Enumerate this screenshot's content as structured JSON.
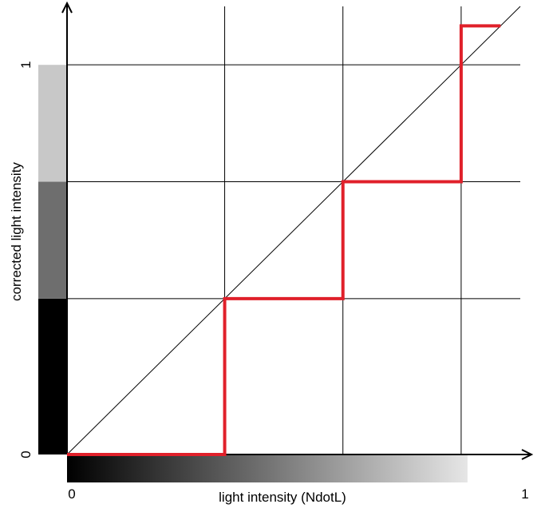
{
  "chart_data": {
    "type": "line",
    "title": "",
    "xlabel": "light intensity (NdotL)",
    "ylabel": "corrected light intensity",
    "xlim": [
      0,
      1.15
    ],
    "ylim": [
      0,
      1.15
    ],
    "x_ticks": [
      {
        "value": 0,
        "label": "0"
      },
      {
        "value": 1.15,
        "label": "1"
      }
    ],
    "y_ticks": [
      {
        "value": 0,
        "label": "0"
      },
      {
        "value": 1,
        "label": "1"
      }
    ],
    "gridlines_x": [
      0.4,
      0.7,
      1.0
    ],
    "gridlines_y": [
      0.4,
      0.7,
      1.0
    ],
    "grid": true,
    "legend": "none",
    "series": [
      {
        "color": "#000000",
        "style": "thin",
        "points": [
          [
            0,
            0
          ],
          [
            1.15,
            1.15
          ]
        ]
      },
      {
        "color": "#e0202a",
        "style": "thick-step",
        "points": [
          [
            0,
            0
          ],
          [
            0.4,
            0
          ],
          [
            0.4,
            0.4
          ],
          [
            0.7,
            0.4
          ],
          [
            0.7,
            0.7
          ],
          [
            1.0,
            0.7
          ],
          [
            1.0,
            1.1
          ],
          [
            1.1,
            1.1
          ]
        ]
      }
    ],
    "y_color_bands": [
      {
        "from": 0,
        "to": 0.4,
        "color": "#000000"
      },
      {
        "from": 0.4,
        "to": 0.7,
        "color": "#6e6e6e"
      },
      {
        "from": 0.7,
        "to": 1.0,
        "color": "#c8c8c8"
      }
    ],
    "x_gradient": {
      "from": 0,
      "to": 1.0,
      "start_color": "#000000",
      "end_color": "#e6e6e6"
    }
  }
}
